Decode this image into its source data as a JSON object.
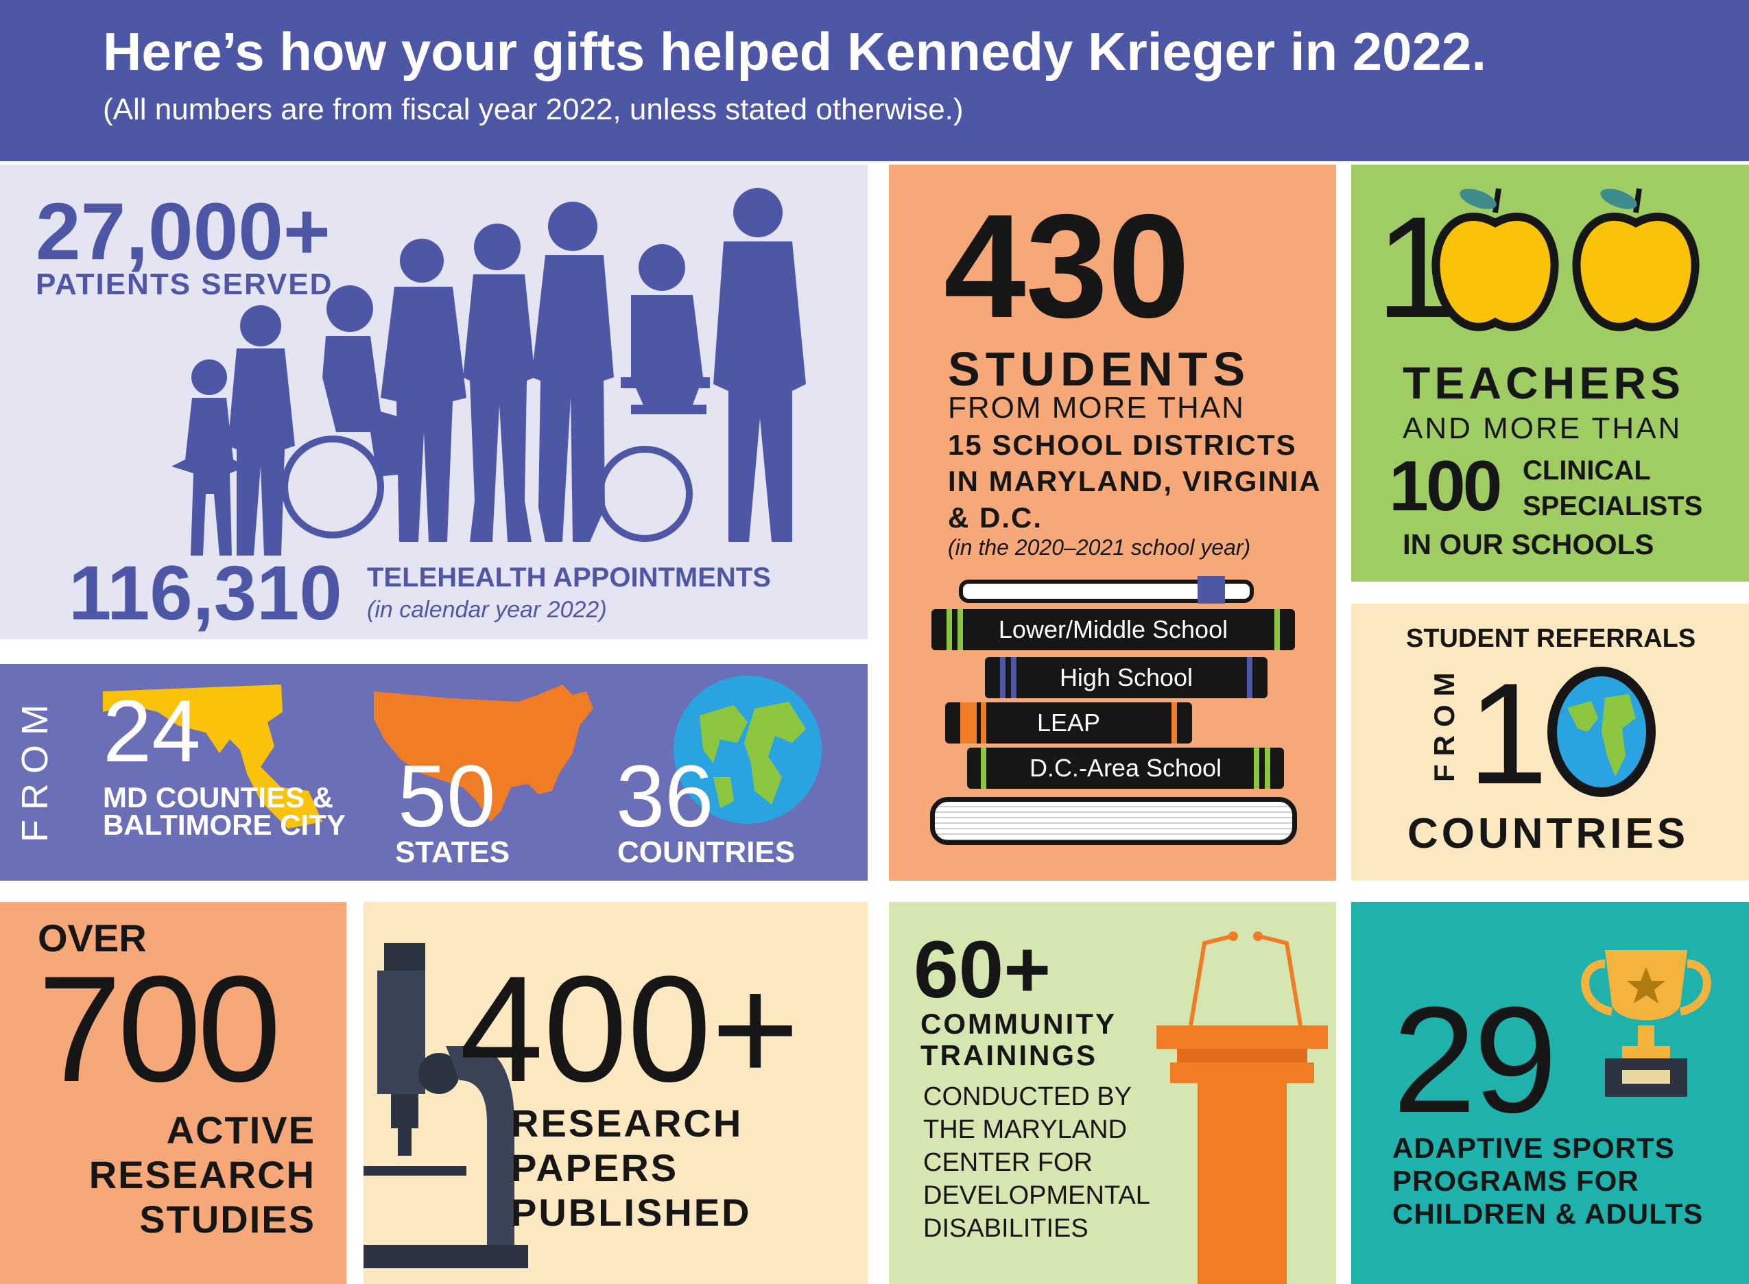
{
  "header": {
    "title": "Here’s how your gifts helped Kennedy Krieger in 2022.",
    "subtitle": "(All numbers are from fiscal year 2022, unless stated otherwise.)"
  },
  "patients": {
    "number": "27,000+",
    "label": "PATIENTS SERVED",
    "telehealth_number": "116,310",
    "telehealth_label": "TELEHEALTH APPOINTMENTS",
    "telehealth_note": "(in calendar year 2022)"
  },
  "from": {
    "word": "FROM",
    "md_number": "24",
    "md_label": "MD COUNTIES & BALTIMORE CITY",
    "states_number": "50",
    "states_label": "STATES",
    "countries_number": "36",
    "countries_label": "COUNTRIES"
  },
  "students": {
    "number": "430",
    "label": "STUDENTS",
    "line1": "FROM MORE THAN",
    "line2": "15 SCHOOL DISTRICTS IN MARYLAND, VIRGINIA & D.C.",
    "note": "(in the 2020–2021 school year)",
    "books": [
      "Lower/Middle School",
      "High School",
      "LEAP",
      "D.C.-Area School"
    ]
  },
  "teachers": {
    "number_first_digit": "1",
    "label": "TEACHERS",
    "line1": "AND MORE THAN",
    "specialists_number": "100",
    "specialists_label": "CLINICAL SPECIALISTS",
    "line2": "IN OUR SCHOOLS"
  },
  "referrals": {
    "title": "STUDENT REFERRALS",
    "from": "FROM",
    "number_first_digit": "1",
    "label": "COUNTRIES"
  },
  "studies": {
    "over": "OVER",
    "number": "700",
    "label": "ACTIVE RESEARCH STUDIES"
  },
  "papers": {
    "number": "400+",
    "label": "RESEARCH PAPERS PUBLISHED"
  },
  "trainings": {
    "number": "60+",
    "label": "COMMUNITY TRAININGS",
    "line2": "CONDUCTED BY THE MARYLAND CENTER FOR DEVELOPMENTAL DISABILITIES"
  },
  "sports": {
    "number": "29",
    "label": "ADAPTIVE SPORTS PROGRAMS FOR CHILDREN & ADULTS"
  },
  "colors": {
    "header_bg": "#4e57a5",
    "patients_bg": "#e5e4f2",
    "from_bg": "#6b6fb8",
    "orange_panel": "#f6a878",
    "green_panel": "#9fcd63",
    "cream_panel": "#fde9c1",
    "light_green_panel": "#d5e6b1",
    "teal_panel": "#1fb1ab"
  },
  "icons": [
    "people-silhouettes-icon",
    "maryland-map-icon",
    "usa-map-icon",
    "globe-icon",
    "books-stack-icon",
    "apple-icon",
    "microscope-icon",
    "podium-icon",
    "trophy-icon"
  ]
}
